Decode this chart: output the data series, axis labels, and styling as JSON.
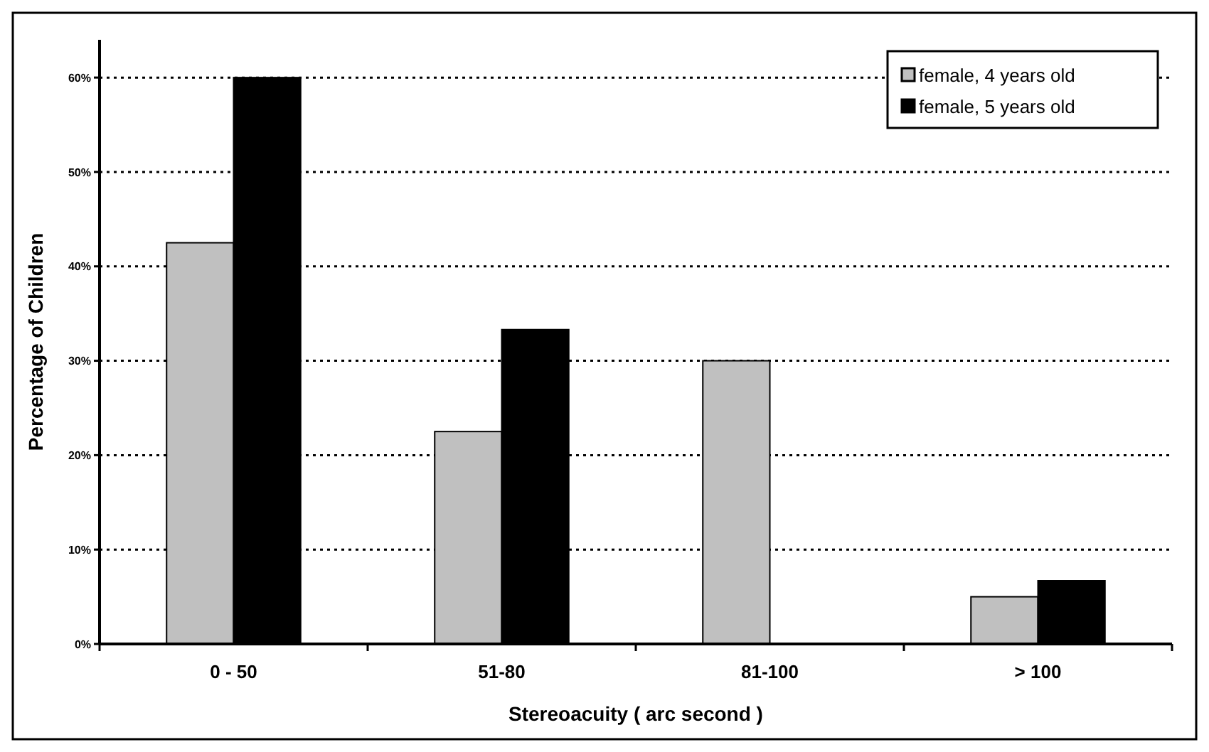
{
  "chart_data": {
    "type": "bar",
    "xlabel": "Stereoacuity  ( arc second )",
    "ylabel": "Percentage of Children",
    "categories": [
      "0 - 50",
      "51-80",
      "81-100",
      "> 100"
    ],
    "series": [
      {
        "name": "female, 4 years old",
        "color": "#c0c0c0",
        "values": [
          42.5,
          22.5,
          30,
          5
        ]
      },
      {
        "name": "female, 5 years old",
        "color": "#000000",
        "values": [
          60,
          33.3,
          0,
          6.7
        ]
      }
    ],
    "ylim": [
      0,
      64
    ],
    "yticks": [
      {
        "value": 0,
        "label": "0%"
      },
      {
        "value": 10,
        "label": "10%"
      },
      {
        "value": 20,
        "label": "20%"
      },
      {
        "value": 30,
        "label": "30%"
      },
      {
        "value": 40,
        "label": "40%"
      },
      {
        "value": 50,
        "label": "50%"
      },
      {
        "value": 60,
        "label": "60%"
      }
    ],
    "grid": "y",
    "legend": "top right"
  }
}
